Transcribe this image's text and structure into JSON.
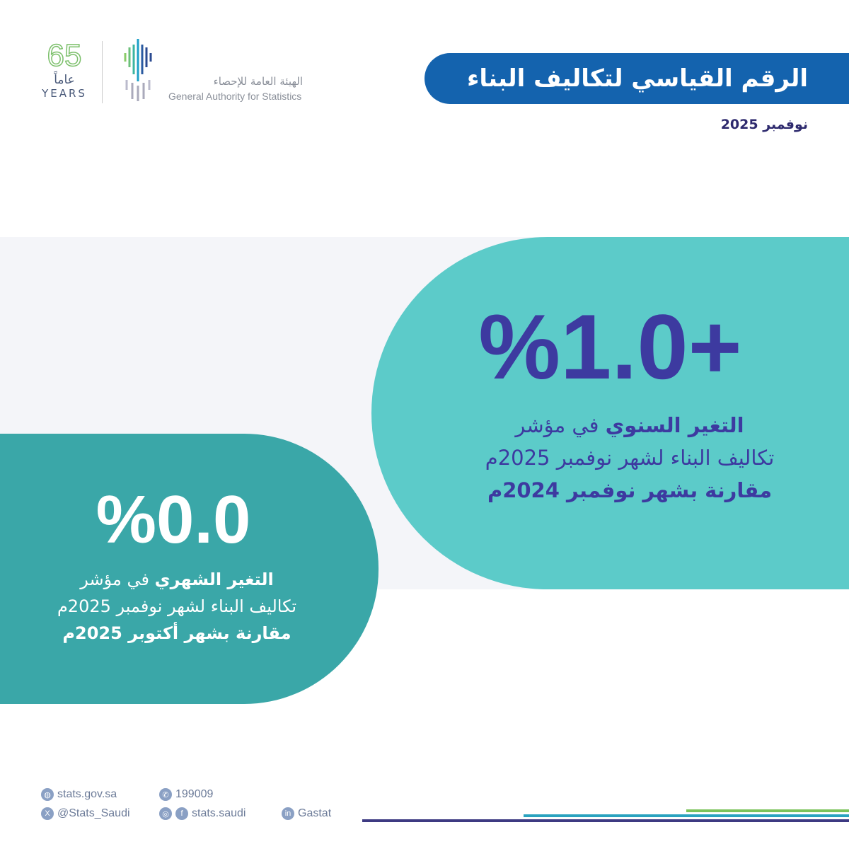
{
  "header": {
    "title": "الرقم القياسي لتكاليف البناء",
    "date": "نوفمبر 2025"
  },
  "logo": {
    "years_number": "65",
    "years_ar": "عاماً",
    "years_en": "YEARS",
    "org_ar": "الهيئة العامة للإحصاء",
    "org_en": "General Authority for Statistics"
  },
  "annual": {
    "value": "%1.0+",
    "line1_bold": "التغير السنوي",
    "line1_rest": " في مؤشر",
    "line2": "تكاليف البناء لشهر نوفمبر 2025م",
    "line3": "مقارنة بشهر نوفمبر 2024م"
  },
  "monthly": {
    "value": "%0.0",
    "line1_bold": "التغير الشهري",
    "line1_rest": " في مؤشر",
    "line2": "تكاليف البناء لشهر نوفمبر 2025م",
    "line3": "مقارنة بشهر أكتوبر 2025م"
  },
  "footer": {
    "website": "stats.gov.sa",
    "phone": "199009",
    "x": "@Stats_Saudi",
    "social": "stats.saudi",
    "linkedin": "Gastat"
  },
  "colors": {
    "title_bg": "#1463ae",
    "annual_bg": "#5ccbc9",
    "monthly_bg": "#3aa7a8",
    "accent_text": "#3d3aa0"
  }
}
